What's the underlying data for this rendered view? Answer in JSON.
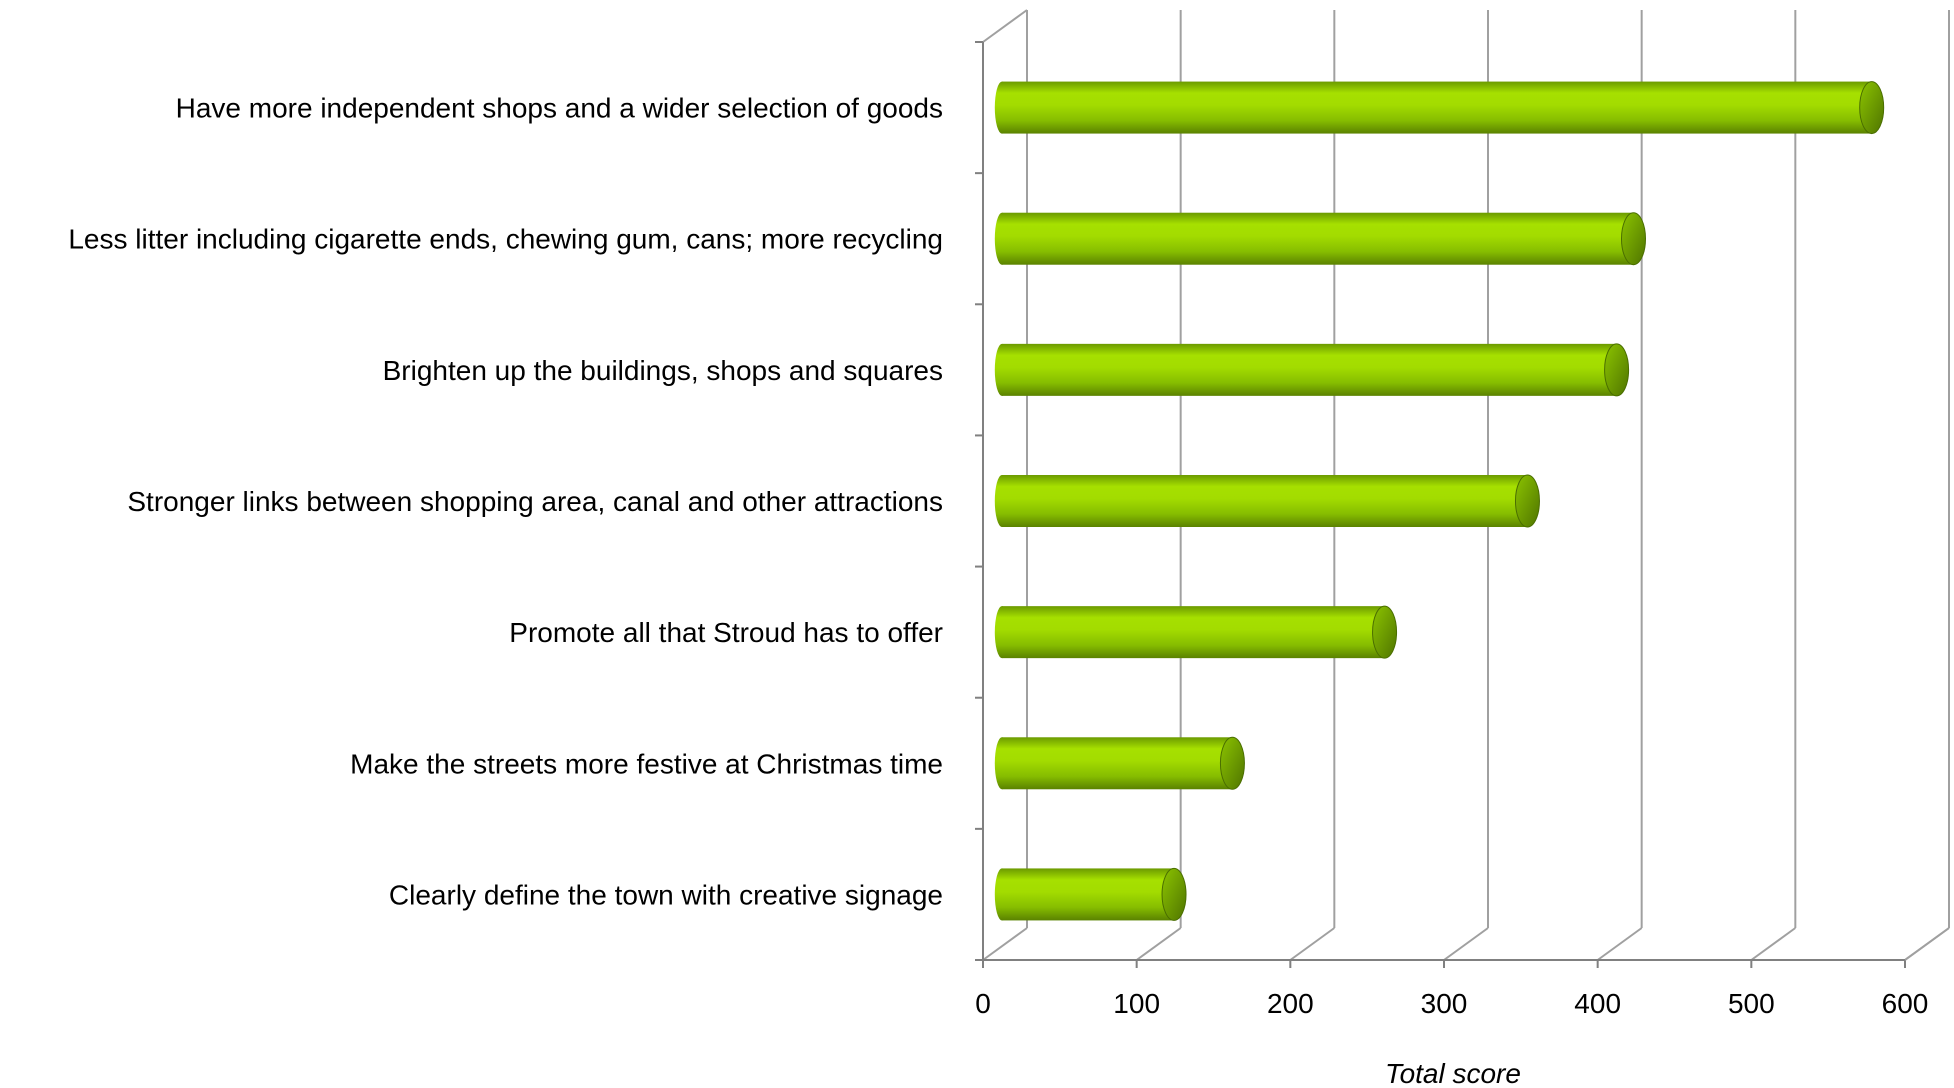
{
  "chart_data": {
    "type": "bar",
    "orientation": "horizontal",
    "style": "3d-cylinder",
    "title": "",
    "xlabel": "Total score",
    "ylabel": "",
    "xlim": [
      0,
      600
    ],
    "ticks": [
      "0",
      "100",
      "200",
      "300",
      "400",
      "500",
      "600"
    ],
    "grid": true,
    "legend": "none",
    "categories": [
      "Have more independent shops and a wider selection of goods",
      "Less litter including cigarette ends, chewing gum, cans; more recycling",
      "Brighten up the buildings, shops and squares",
      "Stronger links between shopping area, canal and other attractions",
      "Promote all that Stroud has to offer",
      "Make the streets more festive at Christmas time",
      "Clearly define the town with creative signage"
    ],
    "values": [
      564,
      409,
      398,
      340,
      247,
      148,
      110
    ],
    "colors": {
      "bar_light": "#a6e000",
      "bar_mid": "#8cc400",
      "bar_dark": "#5f8a00",
      "grid": "#a0a0a0"
    }
  }
}
